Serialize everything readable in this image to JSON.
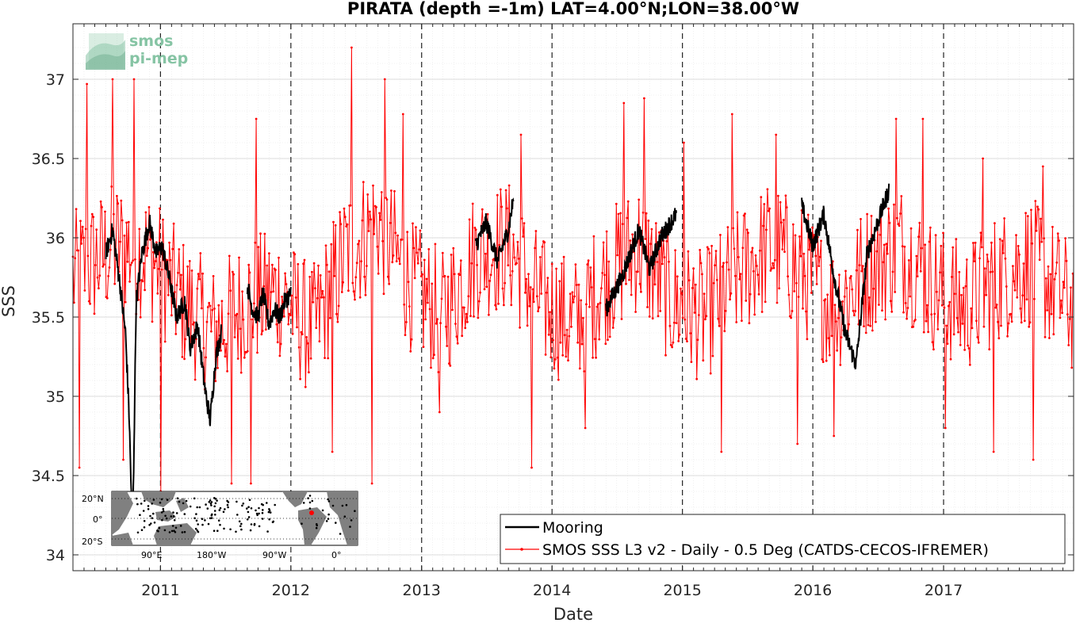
{
  "chart_data": {
    "type": "line",
    "title": "PIRATA (depth =-1m) LAT=4.00°N;LON=38.00°W",
    "xlabel": "Date",
    "ylabel": "SSS",
    "xlim": [
      "2010-05-01",
      "2017-12-31"
    ],
    "ylim": [
      33.9,
      37.35
    ],
    "x_ticks": [
      "2011",
      "2012",
      "2013",
      "2014",
      "2015",
      "2016",
      "2017"
    ],
    "y_ticks": [
      34,
      34.5,
      35,
      35.5,
      36,
      36.5,
      37
    ],
    "y_tick_labels": [
      "34",
      "34.5",
      "35",
      "35.5",
      "36",
      "36.5",
      "37"
    ],
    "year_boundaries": [
      "2011-01-01",
      "2012-01-01",
      "2013-01-01",
      "2014-01-01",
      "2015-01-01",
      "2016-01-01",
      "2017-01-01"
    ],
    "grid": true,
    "legend_position": "bottom-right",
    "series": [
      {
        "name": "Mooring",
        "color": "#000000",
        "style": "line",
        "segments": [
          {
            "x": [
              "2010-08-01",
              "2010-08-20",
              "2010-09-10",
              "2010-09-25",
              "2010-10-05",
              "2010-10-15",
              "2010-10-25",
              "2010-11-10",
              "2010-12-01",
              "2010-12-20",
              "2011-01-05",
              "2011-01-25",
              "2011-02-15",
              "2011-03-10",
              "2011-03-25",
              "2011-04-15",
              "2011-05-05",
              "2011-05-20",
              "2011-06-05",
              "2011-06-20"
            ],
            "y": [
              35.9,
              36.05,
              35.7,
              35.4,
              34.9,
              34.1,
              35.6,
              35.9,
              36.1,
              35.9,
              35.95,
              35.75,
              35.5,
              35.6,
              35.3,
              35.45,
              35.05,
              34.85,
              35.25,
              35.4
            ]
          },
          {
            "x": [
              "2011-09-01",
              "2011-09-15",
              "2011-10-01",
              "2011-10-15",
              "2011-11-01",
              "2011-11-15",
              "2011-12-01",
              "2011-12-15",
              "2012-01-01"
            ],
            "y": [
              35.7,
              35.55,
              35.5,
              35.65,
              35.45,
              35.55,
              35.5,
              35.6,
              35.65
            ]
          },
          {
            "x": [
              "2013-06-01",
              "2013-07-01",
              "2013-08-01",
              "2013-09-01",
              "2013-09-15"
            ],
            "y": [
              35.95,
              36.1,
              35.85,
              36.05,
              36.25
            ]
          },
          {
            "x": [
              "2014-06-01",
              "2014-07-15",
              "2014-09-01",
              "2014-10-01",
              "2014-11-01",
              "2014-12-15"
            ],
            "y": [
              35.55,
              35.75,
              36.05,
              35.8,
              36.0,
              36.15
            ]
          },
          {
            "x": [
              "2015-12-01",
              "2016-01-01",
              "2016-02-01",
              "2016-03-01",
              "2016-04-01",
              "2016-05-01",
              "2016-06-01",
              "2016-07-01",
              "2016-08-01"
            ],
            "y": [
              36.2,
              35.95,
              36.15,
              35.75,
              35.4,
              35.2,
              35.9,
              36.1,
              36.3
            ]
          }
        ]
      },
      {
        "name": "SMOS SSS L3 v2 - Daily - 0.5 Deg (CATDS-CECOS-IFREMER)",
        "color": "#ff0000",
        "style": "line-marker",
        "sampling_days": 3,
        "mean_curve": {
          "x": [
            "2010-05-01",
            "2010-09-01",
            "2010-12-01",
            "2011-03-01",
            "2011-06-01",
            "2011-09-01",
            "2011-12-01",
            "2012-03-01",
            "2012-06-01",
            "2012-09-01",
            "2012-12-01",
            "2013-03-01",
            "2013-06-01",
            "2013-09-01",
            "2013-12-01",
            "2014-03-01",
            "2014-06-01",
            "2014-09-01",
            "2014-12-01",
            "2015-03-01",
            "2015-06-01",
            "2015-09-01",
            "2015-12-01",
            "2016-03-01",
            "2016-06-01",
            "2016-09-01",
            "2016-12-01",
            "2017-03-01",
            "2017-06-01",
            "2017-09-01",
            "2017-12-31"
          ],
          "y": [
            35.75,
            35.95,
            35.9,
            35.6,
            35.4,
            35.6,
            35.65,
            35.4,
            35.9,
            36.1,
            35.7,
            35.5,
            35.9,
            35.95,
            35.6,
            35.45,
            35.75,
            35.95,
            35.6,
            35.5,
            35.75,
            35.95,
            35.8,
            35.55,
            35.8,
            35.95,
            35.7,
            35.55,
            35.75,
            35.85,
            35.55
          ]
        },
        "noise_amplitude": 0.42,
        "peaks": {
          "x": [
            "2010-06-10",
            "2010-08-20",
            "2010-10-20",
            "2011-09-25",
            "2012-06-20",
            "2012-09-20",
            "2012-11-10",
            "2013-10-05",
            "2014-07-20",
            "2014-09-15",
            "2015-01-05",
            "2015-05-20",
            "2015-09-20",
            "2016-08-20",
            "2016-11-05",
            "2017-04-20",
            "2017-10-05"
          ],
          "y": [
            36.97,
            37.0,
            37.0,
            36.75,
            37.2,
            37.0,
            36.78,
            36.65,
            36.85,
            36.88,
            36.6,
            36.78,
            36.65,
            36.75,
            36.75,
            36.5,
            36.45
          ]
        },
        "troughs": {
          "x": [
            "2010-05-20",
            "2010-09-20",
            "2011-01-01",
            "2011-07-20",
            "2011-09-10",
            "2012-04-25",
            "2012-08-15",
            "2013-02-20",
            "2013-11-05",
            "2014-04-05",
            "2015-04-20",
            "2015-11-20",
            "2016-03-01",
            "2017-01-05",
            "2017-05-20",
            "2017-09-10"
          ],
          "y": [
            34.55,
            34.6,
            34.4,
            34.45,
            34.45,
            34.65,
            34.45,
            34.9,
            34.55,
            34.8,
            34.65,
            34.7,
            34.75,
            34.8,
            34.65,
            34.6
          ]
        }
      }
    ],
    "inset_map": {
      "lat_labels": [
        "20°N",
        "0°",
        "20°S"
      ],
      "lon_labels": [
        "90°E",
        "180°W",
        "90°W",
        "0°"
      ],
      "highlight_color": "#ff0000"
    }
  },
  "logo": {
    "line1": "smos",
    "line2": "pi-mep"
  }
}
